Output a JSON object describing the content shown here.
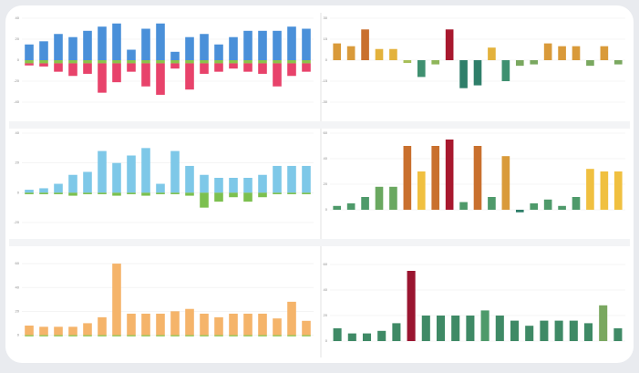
{
  "chart_data": [
    {
      "type": "stacked-bar",
      "ylim": [
        -40,
        40
      ],
      "yticks": [
        -40,
        -20,
        0,
        20,
        40
      ],
      "series": [
        {
          "color": "#4a90d9",
          "values": [
            15,
            18,
            25,
            22,
            28,
            32,
            35,
            10,
            30,
            35,
            8,
            22,
            25,
            15,
            22,
            28,
            28,
            28,
            32,
            30
          ]
        },
        {
          "color": "#8bc34a",
          "values": [
            -3,
            -3,
            -3,
            -3,
            -3,
            -3,
            -3,
            -3,
            -3,
            -3,
            -3,
            -3,
            -3,
            -3,
            -3,
            -3,
            -3,
            -3,
            -3,
            -3
          ]
        },
        {
          "color": "#e8436b",
          "values": [
            -2,
            -3,
            -8,
            -12,
            -10,
            -28,
            -18,
            -8,
            -22,
            -30,
            -5,
            -25,
            -10,
            -8,
            -5,
            -8,
            -10,
            -22,
            -12,
            -8
          ]
        }
      ]
    },
    {
      "type": "bar",
      "ylim": [
        -30,
        30
      ],
      "yticks": [
        -30,
        -15,
        0,
        15,
        30
      ],
      "values": [
        12,
        10,
        22,
        8,
        8,
        -2,
        -12,
        -3,
        22,
        -20,
        -18,
        9,
        -15,
        -4,
        -3,
        12,
        10,
        10,
        -4,
        10,
        -3
      ],
      "colors": [
        "#d99a3a",
        "#d99a3a",
        "#c9702e",
        "#e3b23c",
        "#e3b23c",
        "#a8bf5a",
        "#3f9070",
        "#8fb65a",
        "#a8182e",
        "#2f7f6a",
        "#2f7f6a",
        "#e3b23c",
        "#3f9070",
        "#7aa860",
        "#7aa860",
        "#d99a3a",
        "#d99a3a",
        "#d99a3a",
        "#7aa860",
        "#d99a3a",
        "#7aa860"
      ]
    },
    {
      "type": "stacked-bar",
      "ylim": [
        -20,
        40
      ],
      "yticks": [
        -20,
        0,
        20,
        40
      ],
      "series": [
        {
          "color": "#7ec8e8",
          "values": [
            2,
            3,
            6,
            12,
            14,
            28,
            20,
            25,
            30,
            6,
            28,
            18,
            12,
            10,
            10,
            10,
            12,
            18,
            18,
            18
          ]
        },
        {
          "color": "#7cc04f",
          "values": [
            -1,
            -1,
            -1,
            -2,
            -1,
            -1,
            -2,
            -1,
            -2,
            -1,
            -1,
            -2,
            -10,
            -6,
            -3,
            -6,
            -3,
            -1,
            -1,
            -1
          ]
        }
      ]
    },
    {
      "type": "bar",
      "ylim": [
        -10,
        60
      ],
      "yticks": [
        0,
        20,
        40,
        60
      ],
      "values": [
        3,
        5,
        10,
        18,
        18,
        50,
        30,
        50,
        55,
        6,
        50,
        10,
        42,
        -2,
        5,
        8,
        3,
        10,
        32,
        30,
        30
      ],
      "colors": [
        "#4e9a6a",
        "#4e9a6a",
        "#4e9a6a",
        "#6aa860",
        "#6aa860",
        "#c9702e",
        "#f0c040",
        "#c9702e",
        "#a8182e",
        "#4e9a6a",
        "#c9702e",
        "#4e9a6a",
        "#d99a3a",
        "#2f7f6a",
        "#4e9a6a",
        "#4e9a6a",
        "#4e9a6a",
        "#4e9a6a",
        "#f0c040",
        "#f0c040",
        "#f0c040"
      ]
    },
    {
      "type": "stacked-bar",
      "ylim": [
        -5,
        70
      ],
      "yticks": [
        0,
        20,
        40,
        60
      ],
      "series": [
        {
          "color": "#f5b46a",
          "values": [
            8,
            7,
            7,
            7,
            10,
            15,
            60,
            18,
            18,
            18,
            20,
            22,
            18,
            15,
            18,
            18,
            18,
            14,
            28,
            12
          ]
        },
        {
          "color": "#8bc34a",
          "values": [
            -1,
            -1,
            -1,
            -1,
            -1,
            -1,
            -1,
            -1,
            -1,
            -1,
            -1,
            -1,
            -1,
            -1,
            -1,
            -1,
            -1,
            -1,
            -1,
            -1
          ]
        }
      ]
    },
    {
      "type": "bar",
      "ylim": [
        0,
        70
      ],
      "yticks": [
        0,
        20,
        40,
        60
      ],
      "values": [
        10,
        6,
        6,
        8,
        14,
        55,
        20,
        20,
        20,
        20,
        24,
        20,
        16,
        12,
        16,
        16,
        16,
        14,
        28,
        10
      ],
      "colors": [
        "#3f8a66",
        "#3f8a66",
        "#3f8a66",
        "#3f8a66",
        "#3f8a66",
        "#9a1530",
        "#3f8a66",
        "#3f8a66",
        "#3f8a66",
        "#3f8a66",
        "#4e9a6a",
        "#3f8a66",
        "#3f8a66",
        "#3f8a66",
        "#3f8a66",
        "#3f8a66",
        "#3f8a66",
        "#3f8a66",
        "#7aa860",
        "#3f8a66"
      ]
    }
  ]
}
